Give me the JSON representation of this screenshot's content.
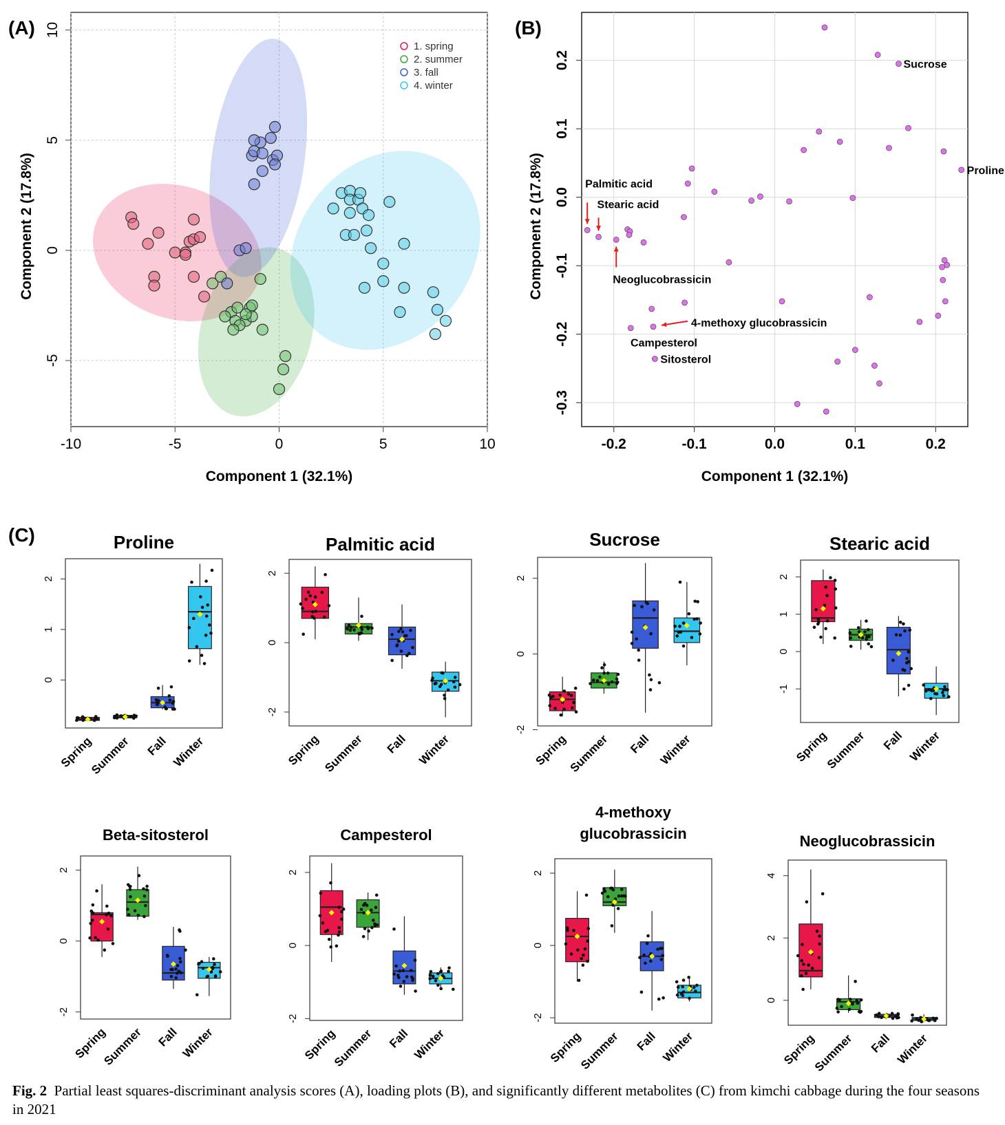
{
  "panel_labels": {
    "a": "(A)",
    "b": "(B)",
    "c": "(C)"
  },
  "caption": {
    "prefix": "Fig. 2",
    "text": "Partial least squares-discriminant analysis scores (A), loading plots (B), and significantly different metabolites (C) from kimchi cabbage during the four seasons in 2021"
  },
  "colors": {
    "spring": "#e8174a",
    "summer": "#3aa63a",
    "fall": "#3a5bd6",
    "winter": "#35c6ef",
    "spring_pt": "#e0607a",
    "summer_pt": "#6fbf6f",
    "fall_pt": "#6f7fd6",
    "winter_pt": "#5fd0e6",
    "loading_pt": "#e070ee",
    "arrow": "#e02020",
    "mean": "#f5f500"
  },
  "chart_data": [
    {
      "id": "A",
      "type": "scatter",
      "title": "",
      "xlabel": "Component 1 (32.1%)",
      "ylabel": "Component 2 (17.8%)",
      "xlim": [
        -10,
        10
      ],
      "ylim": [
        -8,
        10.8
      ],
      "xticks": [
        "-10",
        "-5",
        "0",
        "5",
        "10"
      ],
      "yticks": [
        "-5",
        "0",
        "5",
        "10"
      ],
      "grid": true,
      "legend": {
        "placement": "top-right",
        "entries": [
          "1. spring",
          "2. summer",
          "3. fall",
          "4. winter"
        ]
      },
      "series": [
        {
          "name": "1. spring",
          "color_key": "spring",
          "points": [
            [
              -7.1,
              1.5
            ],
            [
              -7.0,
              1.2
            ],
            [
              -6.3,
              0.3
            ],
            [
              -5.8,
              0.8
            ],
            [
              -6.0,
              -1.2
            ],
            [
              -6.0,
              -1.6
            ],
            [
              -5.0,
              -0.1
            ],
            [
              -4.5,
              -0.1
            ],
            [
              -4.3,
              0.4
            ],
            [
              -4.1,
              0.5
            ],
            [
              -4.1,
              1.4
            ],
            [
              -3.8,
              0.6
            ],
            [
              -4.1,
              -1.2
            ],
            [
              -3.6,
              -2.1
            ],
            [
              -4.5,
              -0.2
            ]
          ]
        },
        {
          "name": "2. summer",
          "color_key": "summer",
          "points": [
            [
              -3.2,
              -1.5
            ],
            [
              -2.8,
              -1.2
            ],
            [
              -2.3,
              -2.8
            ],
            [
              -2.6,
              -3.0
            ],
            [
              -2.1,
              -3.2
            ],
            [
              -2.0,
              -2.6
            ],
            [
              -1.4,
              -2.6
            ],
            [
              -1.3,
              -2.5
            ],
            [
              -0.9,
              -1.3
            ],
            [
              -1.6,
              -3.2
            ],
            [
              -1.3,
              -3.0
            ],
            [
              -0.8,
              -3.6
            ],
            [
              -1.9,
              -3.4
            ],
            [
              -2.2,
              -3.6
            ],
            [
              0.3,
              -4.8
            ],
            [
              0.2,
              -5.4
            ],
            [
              0.0,
              -6.3
            ],
            [
              -1.6,
              -2.9
            ]
          ]
        },
        {
          "name": "3. fall",
          "color_key": "fall",
          "points": [
            [
              -2.5,
              -1.5
            ],
            [
              -1.9,
              0.0
            ],
            [
              -1.6,
              0.1
            ],
            [
              -1.2,
              3.0
            ],
            [
              -1.3,
              4.3
            ],
            [
              -1.2,
              4.5
            ],
            [
              -0.9,
              4.9
            ],
            [
              -1.2,
              5.0
            ],
            [
              -0.8,
              3.6
            ],
            [
              -0.8,
              4.4
            ],
            [
              -0.3,
              4.1
            ],
            [
              -0.1,
              4.3
            ],
            [
              -0.2,
              3.9
            ],
            [
              -0.2,
              5.6
            ],
            [
              -0.4,
              5.1
            ]
          ]
        },
        {
          "name": "4. winter",
          "color_key": "winter",
          "points": [
            [
              2.6,
              1.9
            ],
            [
              3.0,
              2.6
            ],
            [
              3.4,
              2.7
            ],
            [
              3.4,
              2.3
            ],
            [
              3.8,
              2.3
            ],
            [
              3.9,
              2.6
            ],
            [
              3.4,
              1.7
            ],
            [
              4.0,
              1.9
            ],
            [
              4.3,
              1.6
            ],
            [
              5.3,
              2.2
            ],
            [
              3.2,
              0.7
            ],
            [
              3.6,
              0.7
            ],
            [
              4.2,
              0.9
            ],
            [
              4.4,
              0.1
            ],
            [
              5.0,
              -0.6
            ],
            [
              6.0,
              0.3
            ],
            [
              5.0,
              -1.4
            ],
            [
              4.1,
              -1.7
            ],
            [
              6.0,
              -1.7
            ],
            [
              5.8,
              -2.8
            ],
            [
              7.4,
              -1.9
            ],
            [
              7.6,
              -2.7
            ],
            [
              8.0,
              -3.2
            ],
            [
              7.5,
              -3.8
            ]
          ]
        }
      ],
      "ellipses": [
        {
          "color_key": "spring",
          "cx": -4.9,
          "cy": -0.1,
          "rx": 5.6,
          "ry": 2.5,
          "angle_deg": -20
        },
        {
          "color_key": "summer",
          "cx": -1.1,
          "cy": -3.7,
          "rx": 5.6,
          "ry": 2.1,
          "angle_deg": 75
        },
        {
          "color_key": "fall",
          "cx": -1.0,
          "cy": 4.2,
          "rx": 7.8,
          "ry": 1.75,
          "angle_deg": 82
        },
        {
          "color_key": "winter",
          "cx": 5.1,
          "cy": 0.0,
          "rx": 6.9,
          "ry": 3.3,
          "angle_deg": 52
        }
      ]
    },
    {
      "id": "B",
      "type": "scatter",
      "title": "",
      "xlabel": "Component 1 (32.1%)",
      "ylabel": "Component 2 (17.8%)",
      "xlim": [
        -0.24,
        0.24
      ],
      "ylim": [
        -0.335,
        0.27
      ],
      "xticks": [
        "-0.2",
        "-0.1",
        "0.0",
        "0.1",
        "0.2"
      ],
      "yticks": [
        "-0.3",
        "-0.2",
        "-0.1",
        "0.0",
        "0.1",
        "0.2"
      ],
      "grid": true,
      "points": [
        [
          -0.233,
          -0.048
        ],
        [
          -0.219,
          -0.058
        ],
        [
          -0.197,
          -0.062
        ],
        [
          -0.183,
          -0.047
        ],
        [
          -0.18,
          -0.05
        ],
        [
          -0.181,
          -0.055
        ],
        [
          -0.163,
          -0.066
        ],
        [
          -0.103,
          0.042
        ],
        [
          -0.108,
          0.02
        ],
        [
          -0.075,
          0.008
        ],
        [
          -0.113,
          -0.029
        ],
        [
          -0.029,
          -0.005
        ],
        [
          -0.018,
          0.001
        ],
        [
          0.018,
          -0.006
        ],
        [
          0.097,
          -0.001
        ],
        [
          -0.057,
          -0.095
        ],
        [
          0.062,
          0.248
        ],
        [
          0.128,
          0.208
        ],
        [
          0.154,
          0.195
        ],
        [
          0.055,
          0.096
        ],
        [
          0.081,
          0.081
        ],
        [
          0.036,
          0.069
        ],
        [
          0.142,
          0.072
        ],
        [
          0.166,
          0.101
        ],
        [
          0.21,
          0.067
        ],
        [
          0.232,
          0.04
        ],
        [
          -0.153,
          -0.163
        ],
        [
          -0.112,
          -0.154
        ],
        [
          -0.151,
          -0.189
        ],
        [
          -0.179,
          -0.191
        ],
        [
          0.009,
          -0.152
        ],
        [
          0.118,
          -0.146
        ],
        [
          0.211,
          -0.092
        ],
        [
          0.214,
          -0.099
        ],
        [
          0.208,
          -0.102
        ],
        [
          0.209,
          -0.121
        ],
        [
          0.212,
          -0.152
        ],
        [
          0.18,
          -0.182
        ],
        [
          0.203,
          -0.173
        ],
        [
          -0.149,
          -0.236
        ],
        [
          0.078,
          -0.24
        ],
        [
          0.1,
          -0.223
        ],
        [
          0.124,
          -0.246
        ],
        [
          0.13,
          -0.272
        ],
        [
          0.028,
          -0.302
        ],
        [
          0.064,
          -0.313
        ]
      ],
      "labels": [
        {
          "text": "Sucrose",
          "x": 0.154,
          "y": 0.195
        },
        {
          "text": "Proline",
          "x": 0.232,
          "y": 0.04
        },
        {
          "text": "Palmitic acid",
          "x": -0.233,
          "y": -0.048
        },
        {
          "text": "Stearic acid",
          "x": -0.219,
          "y": -0.058
        },
        {
          "text": "Neoglucobrassicin",
          "x": -0.197,
          "y": -0.062
        },
        {
          "text": "4-methoxy glucobrassicin",
          "x": -0.151,
          "y": -0.189
        },
        {
          "text": "Campesterol",
          "x": -0.151,
          "y": -0.189
        },
        {
          "text": "Sitosterol",
          "x": -0.149,
          "y": -0.236
        }
      ]
    },
    {
      "id": "C",
      "type": "box",
      "categories": [
        "Spring",
        "Summer",
        "Fall",
        "Winter"
      ],
      "panels": [
        {
          "title": "Proline",
          "ylim": [
            -0.95,
            2.4
          ],
          "yticks": [
            0,
            1,
            2
          ],
          "boxes": [
            {
              "q1": -0.8,
              "median": -0.78,
              "q3": -0.74,
              "lo": -0.8,
              "hi": -0.72,
              "mean": -0.78
            },
            {
              "q1": -0.75,
              "median": -0.73,
              "q3": -0.7,
              "lo": -0.76,
              "hi": -0.68,
              "mean": -0.73
            },
            {
              "q1": -0.55,
              "median": -0.45,
              "q3": -0.33,
              "lo": -0.58,
              "hi": -0.1,
              "mean": -0.45
            },
            {
              "q1": 0.62,
              "median": 1.35,
              "q3": 1.85,
              "lo": 0.3,
              "hi": 2.3,
              "mean": 1.3
            }
          ]
        },
        {
          "title": "Palmitic acid",
          "ylim": [
            -2.4,
            2.4
          ],
          "yticks": [
            -2,
            0,
            2
          ],
          "boxes": [
            {
              "q1": 0.7,
              "median": 0.9,
              "q3": 1.6,
              "lo": 0.1,
              "hi": 2.2,
              "mean": 1.1
            },
            {
              "q1": 0.25,
              "median": 0.45,
              "q3": 0.55,
              "lo": 0.05,
              "hi": 1.3,
              "mean": 0.5
            },
            {
              "q1": -0.35,
              "median": 0.1,
              "q3": 0.45,
              "lo": -0.75,
              "hi": 1.1,
              "mean": 0.1
            },
            {
              "q1": -1.4,
              "median": -1.1,
              "q3": -0.85,
              "lo": -2.15,
              "hi": -0.55,
              "mean": -1.1
            }
          ]
        },
        {
          "title": "Sucrose",
          "ylim": [
            -1.9,
            2.55
          ],
          "yticks": [
            -2,
            0,
            2
          ],
          "boxes": [
            {
              "q1": -1.5,
              "median": -1.2,
              "q3": -1.0,
              "lo": -1.65,
              "hi": -0.6,
              "mean": -1.2
            },
            {
              "q1": -0.9,
              "median": -0.75,
              "q3": -0.5,
              "lo": -1.05,
              "hi": -0.2,
              "mean": -0.7
            },
            {
              "q1": 0.15,
              "median": 0.95,
              "q3": 1.4,
              "lo": -1.55,
              "hi": 2.4,
              "mean": 0.7
            },
            {
              "q1": 0.3,
              "median": 0.6,
              "q3": 0.95,
              "lo": -0.3,
              "hi": 1.9,
              "mean": 0.75
            }
          ]
        },
        {
          "title": "Stearic acid",
          "ylim": [
            -1.9,
            2.45
          ],
          "yticks": [
            -1,
            0,
            1,
            2
          ],
          "boxes": [
            {
              "q1": 0.8,
              "median": 0.9,
              "q3": 1.9,
              "lo": 0.2,
              "hi": 2.2,
              "mean": 1.15
            },
            {
              "q1": 0.3,
              "median": 0.45,
              "q3": 0.6,
              "lo": 0.05,
              "hi": 0.85,
              "mean": 0.45
            },
            {
              "q1": -0.6,
              "median": 0.05,
              "q3": 0.65,
              "lo": -1.2,
              "hi": 0.95,
              "mean": -0.05
            },
            {
              "q1": -1.25,
              "median": -1.0,
              "q3": -0.85,
              "lo": -1.7,
              "hi": -0.4,
              "mean": -1.0
            }
          ]
        },
        {
          "title": "Beta-sitosterol",
          "ylim": [
            -2.2,
            2.4
          ],
          "yticks": [
            -2,
            0,
            2
          ],
          "boxes": [
            {
              "q1": 0.0,
              "median": 0.75,
              "q3": 0.8,
              "lo": -0.45,
              "hi": 1.6,
              "mean": 0.55
            },
            {
              "q1": 0.7,
              "median": 1.1,
              "q3": 1.45,
              "lo": 0.6,
              "hi": 2.1,
              "mean": 1.15
            },
            {
              "q1": -1.1,
              "median": -0.9,
              "q3": -0.15,
              "lo": -1.35,
              "hi": 0.4,
              "mean": -0.65
            },
            {
              "q1": -1.05,
              "median": -0.75,
              "q3": -0.6,
              "lo": -1.55,
              "hi": -0.45,
              "mean": -0.8
            }
          ]
        },
        {
          "title": "Campesterol",
          "ylim": [
            -2.05,
            2.45
          ],
          "yticks": [
            -2,
            0,
            2
          ],
          "boxes": [
            {
              "q1": 0.3,
              "median": 1.05,
              "q3": 1.5,
              "lo": -0.45,
              "hi": 2.25,
              "mean": 0.9
            },
            {
              "q1": 0.5,
              "median": 0.9,
              "q3": 1.25,
              "lo": 0.15,
              "hi": 1.45,
              "mean": 0.9
            },
            {
              "q1": -1.05,
              "median": -0.7,
              "q3": -0.15,
              "lo": -1.35,
              "hi": 0.8,
              "mean": -0.55
            },
            {
              "q1": -1.05,
              "median": -0.9,
              "q3": -0.75,
              "lo": -1.2,
              "hi": -0.6,
              "mean": -0.9
            }
          ]
        },
        {
          "title": "4-methoxy\nglucobrassicin",
          "ylim": [
            -2.15,
            2.4
          ],
          "yticks": [
            -2,
            0,
            2
          ],
          "boxes": [
            {
              "q1": -0.45,
              "median": 0.25,
              "q3": 0.75,
              "lo": -1.0,
              "hi": 1.5,
              "mean": 0.25
            },
            {
              "q1": 1.1,
              "median": 1.2,
              "q3": 1.6,
              "lo": 0.35,
              "hi": 2.1,
              "mean": 1.2
            },
            {
              "q1": -0.7,
              "median": -0.3,
              "q3": 0.1,
              "lo": -1.8,
              "hi": 0.95,
              "mean": -0.3
            },
            {
              "q1": -1.45,
              "median": -1.3,
              "q3": -1.1,
              "lo": -1.55,
              "hi": -0.85,
              "mean": -1.2
            }
          ]
        },
        {
          "title": "Neoglucobrassicin",
          "ylim": [
            -0.8,
            4.5
          ],
          "yticks": [
            0,
            2,
            4
          ],
          "boxes": [
            {
              "q1": 0.75,
              "median": 0.95,
              "q3": 2.45,
              "lo": 0.35,
              "hi": 4.2,
              "mean": 1.55
            },
            {
              "q1": -0.3,
              "median": -0.05,
              "q3": 0.05,
              "lo": -0.4,
              "hi": 0.8,
              "mean": -0.1
            },
            {
              "q1": -0.55,
              "median": -0.5,
              "q3": -0.45,
              "lo": -0.6,
              "hi": -0.4,
              "mean": -0.5
            },
            {
              "q1": -0.65,
              "median": -0.6,
              "q3": -0.55,
              "lo": -0.7,
              "hi": -0.45,
              "mean": -0.6
            }
          ]
        }
      ]
    }
  ]
}
